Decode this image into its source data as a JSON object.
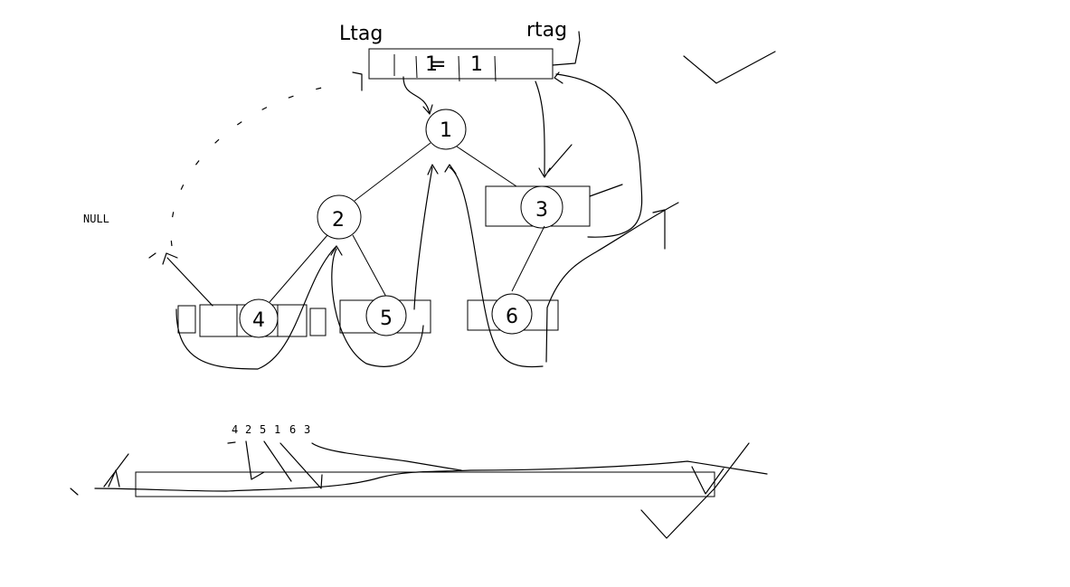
{
  "labels": {
    "ltag": "Ltag",
    "rtag": "rtag",
    "null_label": "NULL",
    "header_cells": [
      "1",
      "=",
      "1"
    ],
    "sequence": [
      "4",
      "2",
      "5",
      "1",
      "6",
      "3"
    ]
  },
  "nodes": {
    "n1": "1",
    "n2": "2",
    "n3": "3",
    "n4": "4",
    "n5": "5",
    "n6": "6"
  }
}
